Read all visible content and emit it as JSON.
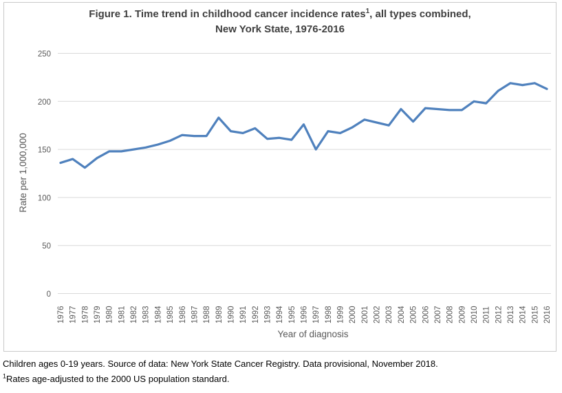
{
  "figure": {
    "title_line1_pre": "Figure 1. Time trend in childhood cancer incidence rates",
    "title_sup": "1",
    "title_line1_post": ", all types combined,",
    "title_line2": "New York State, 1976-2016"
  },
  "footnotes": {
    "line1": "Children ages 0-19 years. Source of data: New York State Cancer Registry. Data provisional, November 2018.",
    "line2_sup": "1",
    "line2_text": "Rates age-adjusted to the 2000 US population standard."
  },
  "chart_data": {
    "type": "line",
    "x": [
      1976,
      1977,
      1978,
      1979,
      1980,
      1981,
      1982,
      1983,
      1984,
      1985,
      1986,
      1987,
      1988,
      1989,
      1990,
      1991,
      1992,
      1993,
      1994,
      1995,
      1996,
      1997,
      1998,
      1999,
      2000,
      2001,
      2002,
      2003,
      2004,
      2005,
      2006,
      2007,
      2008,
      2009,
      2010,
      2011,
      2012,
      2013,
      2014,
      2015,
      2016
    ],
    "values": [
      136,
      140,
      131,
      141,
      148,
      148,
      150,
      152,
      155,
      159,
      165,
      164,
      164,
      183,
      169,
      167,
      172,
      161,
      162,
      160,
      176,
      150,
      169,
      167,
      173,
      181,
      178,
      175,
      192,
      179,
      193,
      192,
      191,
      191,
      200,
      198,
      211,
      219,
      217,
      219,
      213
    ],
    "xlabel": "Year of diagnosis",
    "ylabel": "Rate per 1,000,000",
    "ylim": [
      0,
      250
    ],
    "yticks": [
      0,
      50,
      100,
      150,
      200,
      250
    ],
    "grid": true,
    "legend": "none",
    "line_color": "#4F81BD",
    "gridline_color": "#D9D9D9",
    "axis_text_color": "#595959"
  }
}
